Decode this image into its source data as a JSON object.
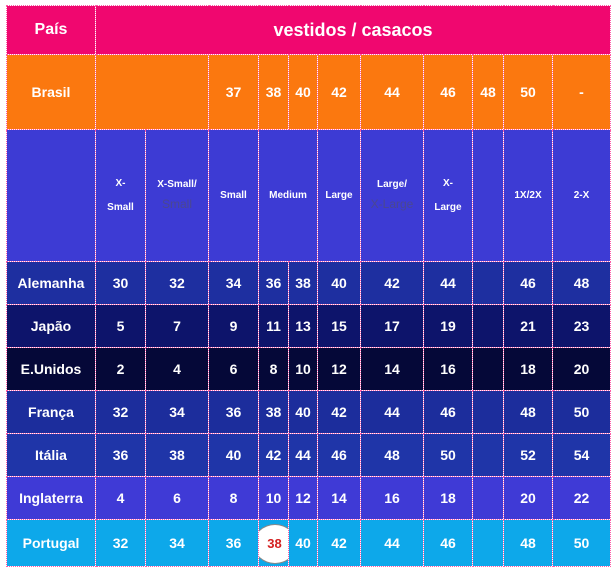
{
  "header": {
    "pais": "País",
    "group_title": "vestidos / casacos"
  },
  "brasil_row": {
    "country": "Brasil",
    "sizes": [
      "",
      "",
      "37",
      "38",
      "40",
      "42",
      "44",
      "46",
      "48",
      "50",
      "-"
    ]
  },
  "label_row": {
    "xs": [
      "X-",
      "Small"
    ],
    "xsmall_small": [
      "X-Small/",
      "Small"
    ],
    "small": "Small",
    "medium": "Medium",
    "large": "Large",
    "large_xlarge": [
      "Large/",
      "X-Large"
    ],
    "xlarge": [
      "X-",
      "Large"
    ],
    "one_x_two_x": "1X/2X",
    "two_x": "2-X"
  },
  "rows": [
    {
      "country": "Alemanha",
      "values": [
        "30",
        "32",
        "34",
        "36",
        "38",
        "40",
        "42",
        "44",
        "",
        "46",
        "48"
      ]
    },
    {
      "country": "Japão",
      "values": [
        "5",
        "7",
        "9",
        "11",
        "13",
        "15",
        "17",
        "19",
        "",
        "21",
        "23"
      ]
    },
    {
      "country": "E.Unidos",
      "values": [
        "2",
        "4",
        "6",
        "8",
        "10",
        "12",
        "14",
        "16",
        "",
        "18",
        "20"
      ]
    },
    {
      "country": "França",
      "values": [
        "32",
        "34",
        "36",
        "38",
        "40",
        "42",
        "44",
        "46",
        "",
        "48",
        "50"
      ]
    },
    {
      "country": "Itália",
      "values": [
        "36",
        "38",
        "40",
        "42",
        "44",
        "46",
        "48",
        "50",
        "",
        "52",
        "54"
      ]
    },
    {
      "country": "Inglaterra",
      "values": [
        "4",
        "6",
        "8",
        "10",
        "12",
        "14",
        "16",
        "18",
        "",
        "20",
        "22"
      ]
    },
    {
      "country": "Portugal",
      "values": [
        "32",
        "34",
        "36",
        "38",
        "40",
        "42",
        "44",
        "46",
        "",
        "48",
        "50"
      ]
    }
  ],
  "highlight": {
    "row": "Portugal",
    "value": "38"
  },
  "colors": {
    "title_bg": "#f0076f",
    "brasil_bg": "#fb780f",
    "labels_bg": "#3d3bd4",
    "portugal_bg": "#0da8ea",
    "highlight_text": "#d42020"
  }
}
